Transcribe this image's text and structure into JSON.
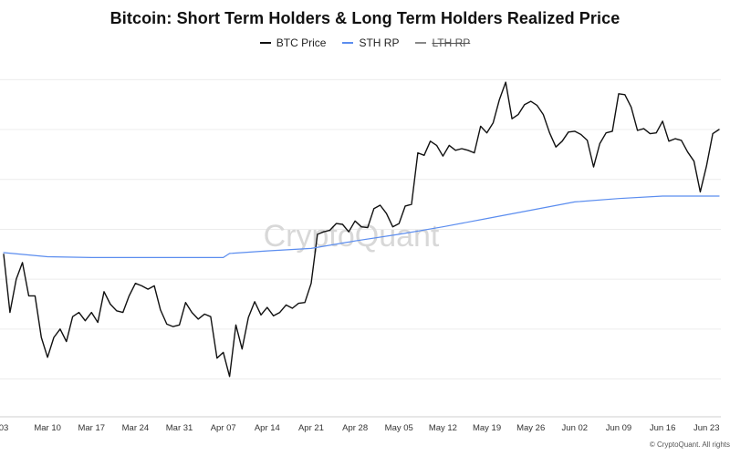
{
  "chart_data": {
    "type": "line",
    "title": "Bitcoin: Short Term Holders & Long Term Holders Realized Price",
    "x_tick_labels": [
      "03",
      "Mar 10",
      "Mar 17",
      "Mar 24",
      "Mar 31",
      "Apr 07",
      "Apr 14",
      "Apr 21",
      "Apr 28",
      "May 05",
      "May 12",
      "May 19",
      "May 26",
      "Jun 02",
      "Jun 09",
      "Jun 16",
      "Jun 23"
    ],
    "x_range": [
      "2025-03-03",
      "2025-06-25"
    ],
    "y_range": [
      72000,
      115000
    ],
    "y_gridlines": [
      76000,
      82000,
      88000,
      94000,
      100000,
      106000,
      112000
    ],
    "grid": "horizontal",
    "legend_position": "top-center",
    "series": [
      {
        "name": "BTC Price",
        "color": "#111111",
        "visible": true,
        "points": [
          [
            "2025-03-03",
            91000
          ],
          [
            "2025-03-04",
            84000
          ],
          [
            "2025-03-05",
            88000
          ],
          [
            "2025-03-06",
            90000
          ],
          [
            "2025-03-07",
            86000
          ],
          [
            "2025-03-08",
            86000
          ],
          [
            "2025-03-09",
            81000
          ],
          [
            "2025-03-10",
            78600
          ],
          [
            "2025-03-11",
            81000
          ],
          [
            "2025-03-12",
            82000
          ],
          [
            "2025-03-13",
            80500
          ],
          [
            "2025-03-14",
            83500
          ],
          [
            "2025-03-15",
            84000
          ],
          [
            "2025-03-16",
            83000
          ],
          [
            "2025-03-17",
            84000
          ],
          [
            "2025-03-18",
            82800
          ],
          [
            "2025-03-19",
            86500
          ],
          [
            "2025-03-20",
            85000
          ],
          [
            "2025-03-21",
            84200
          ],
          [
            "2025-03-22",
            84000
          ],
          [
            "2025-03-23",
            86000
          ],
          [
            "2025-03-24",
            87500
          ],
          [
            "2025-03-25",
            87200
          ],
          [
            "2025-03-26",
            86800
          ],
          [
            "2025-03-27",
            87200
          ],
          [
            "2025-03-28",
            84300
          ],
          [
            "2025-03-29",
            82600
          ],
          [
            "2025-03-30",
            82300
          ],
          [
            "2025-03-31",
            82500
          ],
          [
            "2025-04-01",
            85200
          ],
          [
            "2025-04-02",
            84000
          ],
          [
            "2025-04-03",
            83200
          ],
          [
            "2025-04-04",
            83800
          ],
          [
            "2025-04-05",
            83500
          ],
          [
            "2025-04-06",
            78500
          ],
          [
            "2025-04-07",
            79200
          ],
          [
            "2025-04-08",
            76300
          ],
          [
            "2025-04-09",
            82500
          ],
          [
            "2025-04-10",
            79600
          ],
          [
            "2025-04-11",
            83400
          ],
          [
            "2025-04-12",
            85300
          ],
          [
            "2025-04-13",
            83700
          ],
          [
            "2025-04-14",
            84600
          ],
          [
            "2025-04-15",
            83600
          ],
          [
            "2025-04-16",
            84000
          ],
          [
            "2025-04-17",
            84900
          ],
          [
            "2025-04-18",
            84500
          ],
          [
            "2025-04-19",
            85100
          ],
          [
            "2025-04-20",
            85200
          ],
          [
            "2025-04-21",
            87500
          ],
          [
            "2025-04-22",
            93400
          ],
          [
            "2025-04-23",
            93700
          ],
          [
            "2025-04-24",
            93900
          ],
          [
            "2025-04-25",
            94700
          ],
          [
            "2025-04-26",
            94600
          ],
          [
            "2025-04-27",
            93700
          ],
          [
            "2025-04-28",
            95000
          ],
          [
            "2025-04-29",
            94300
          ],
          [
            "2025-04-30",
            94200
          ],
          [
            "2025-05-01",
            96500
          ],
          [
            "2025-05-02",
            96900
          ],
          [
            "2025-05-03",
            95900
          ],
          [
            "2025-05-04",
            94300
          ],
          [
            "2025-05-05",
            94700
          ],
          [
            "2025-05-06",
            96800
          ],
          [
            "2025-05-07",
            97000
          ],
          [
            "2025-05-08",
            103200
          ],
          [
            "2025-05-09",
            102900
          ],
          [
            "2025-05-10",
            104600
          ],
          [
            "2025-05-11",
            104100
          ],
          [
            "2025-05-12",
            102800
          ],
          [
            "2025-05-13",
            104100
          ],
          [
            "2025-05-14",
            103500
          ],
          [
            "2025-05-15",
            103700
          ],
          [
            "2025-05-16",
            103500
          ],
          [
            "2025-05-17",
            103200
          ],
          [
            "2025-05-18",
            106400
          ],
          [
            "2025-05-19",
            105600
          ],
          [
            "2025-05-20",
            106800
          ],
          [
            "2025-05-21",
            109600
          ],
          [
            "2025-05-22",
            111700
          ],
          [
            "2025-05-23",
            107300
          ],
          [
            "2025-05-24",
            107800
          ],
          [
            "2025-05-25",
            109000
          ],
          [
            "2025-05-26",
            109400
          ],
          [
            "2025-05-27",
            108900
          ],
          [
            "2025-05-28",
            107800
          ],
          [
            "2025-05-29",
            105600
          ],
          [
            "2025-05-30",
            103900
          ],
          [
            "2025-05-31",
            104600
          ],
          [
            "2025-06-01",
            105700
          ],
          [
            "2025-06-02",
            105800
          ],
          [
            "2025-06-03",
            105400
          ],
          [
            "2025-06-04",
            104700
          ],
          [
            "2025-06-05",
            101500
          ],
          [
            "2025-06-06",
            104300
          ],
          [
            "2025-06-07",
            105600
          ],
          [
            "2025-06-08",
            105800
          ],
          [
            "2025-06-09",
            110300
          ],
          [
            "2025-06-10",
            110200
          ],
          [
            "2025-06-11",
            108700
          ],
          [
            "2025-06-12",
            105900
          ],
          [
            "2025-06-13",
            106100
          ],
          [
            "2025-06-14",
            105500
          ],
          [
            "2025-06-15",
            105600
          ],
          [
            "2025-06-16",
            107000
          ],
          [
            "2025-06-17",
            104600
          ],
          [
            "2025-06-18",
            104900
          ],
          [
            "2025-06-19",
            104700
          ],
          [
            "2025-06-20",
            103300
          ],
          [
            "2025-06-21",
            102200
          ],
          [
            "2025-06-22",
            98500
          ],
          [
            "2025-06-23",
            101600
          ],
          [
            "2025-06-24",
            105500
          ],
          [
            "2025-06-25",
            106000
          ]
        ]
      },
      {
        "name": "STH RP",
        "color": "#5b8def",
        "visible": true,
        "points": [
          [
            "2025-03-03",
            91200
          ],
          [
            "2025-03-10",
            90700
          ],
          [
            "2025-03-17",
            90600
          ],
          [
            "2025-03-24",
            90600
          ],
          [
            "2025-03-31",
            90600
          ],
          [
            "2025-04-07",
            90600
          ],
          [
            "2025-04-08",
            91100
          ],
          [
            "2025-04-14",
            91400
          ],
          [
            "2025-04-21",
            91700
          ],
          [
            "2025-04-28",
            92600
          ],
          [
            "2025-05-05",
            93400
          ],
          [
            "2025-05-12",
            94300
          ],
          [
            "2025-05-19",
            95300
          ],
          [
            "2025-05-26",
            96300
          ],
          [
            "2025-06-02",
            97300
          ],
          [
            "2025-06-09",
            97700
          ],
          [
            "2025-06-16",
            98000
          ],
          [
            "2025-06-25",
            98000
          ]
        ]
      },
      {
        "name": "LTH RP",
        "color": "#888888",
        "visible": false,
        "points": []
      }
    ],
    "watermark": "CryptoQuant",
    "credit": "© CryptoQuant. All rights"
  }
}
